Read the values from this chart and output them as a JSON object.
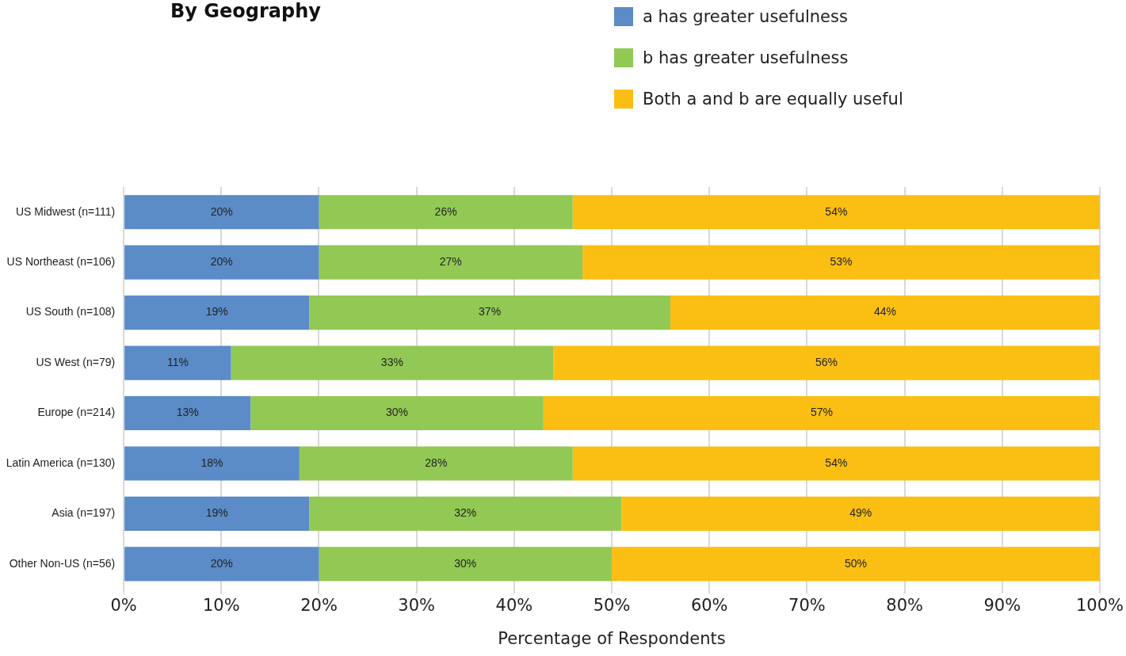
{
  "chart_data": {
    "type": "bar",
    "orientation": "horizontal",
    "stacked": true,
    "title": "By Geography",
    "xlabel": "Percentage of Respondents",
    "categories": [
      "US Midwest (n=111)",
      "US Northeast (n=106)",
      "US South (n=108)",
      "US West (n=79)",
      "Europe (n=214)",
      "Latin America (n=130)",
      "Asia (n=197)",
      "Other Non-US (n=56)"
    ],
    "series": [
      {
        "name": "a has greater usefulness",
        "color": "#5b8cc8",
        "values": [
          20,
          20,
          19,
          11,
          13,
          18,
          19,
          20
        ]
      },
      {
        "name": "b has greater usefulness",
        "color": "#92c954",
        "values": [
          26,
          27,
          37,
          33,
          30,
          28,
          32,
          30
        ]
      },
      {
        "name": "Both a and b are equally useful",
        "color": "#fbbf14",
        "values": [
          54,
          53,
          44,
          56,
          57,
          54,
          49,
          50
        ]
      }
    ],
    "xlim": [
      0,
      100
    ],
    "xticks": [
      {
        "value": 0,
        "label": "0%"
      },
      {
        "value": 10,
        "label": "10%"
      },
      {
        "value": 20,
        "label": "20%"
      },
      {
        "value": 30,
        "label": "30%"
      },
      {
        "value": 40,
        "label": "40%"
      },
      {
        "value": 50,
        "label": "50%"
      },
      {
        "value": 60,
        "label": "60%"
      },
      {
        "value": 70,
        "label": "70%"
      },
      {
        "value": 80,
        "label": "80%"
      },
      {
        "value": 90,
        "label": "90%"
      },
      {
        "value": 100,
        "label": "100%"
      }
    ],
    "value_labels": [
      [
        "20%",
        "20%",
        "19%",
        "11%",
        "13%",
        "18%",
        "19%",
        "20%"
      ],
      [
        "26%",
        "27%",
        "37%",
        "33%",
        "30%",
        "28%",
        "32%",
        "30%"
      ],
      [
        "54%",
        "53%",
        "44%",
        "56%",
        "57%",
        "54%",
        "49%",
        "50%"
      ]
    ],
    "grid": "x",
    "legend": "top right"
  }
}
